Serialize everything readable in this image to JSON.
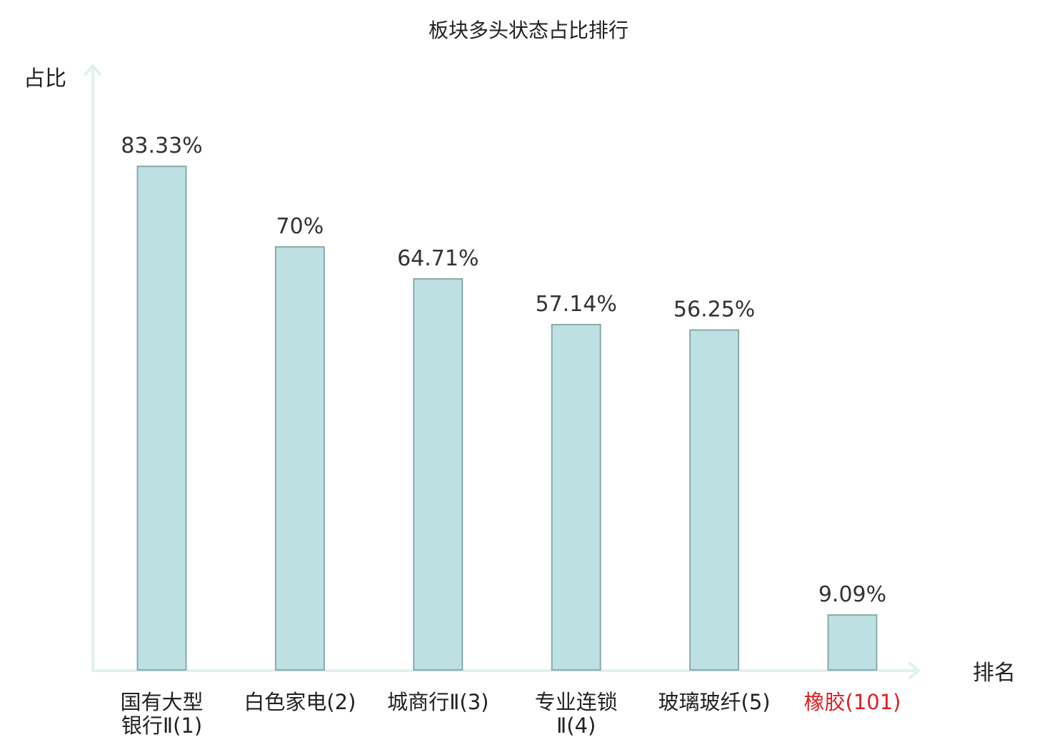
{
  "chart_data": {
    "type": "bar",
    "title": "板块多头状态占比排行",
    "xlabel": "排名",
    "ylabel": "占比",
    "ylim": [
      0,
      100
    ],
    "grid": false,
    "categories": [
      [
        "国有大型",
        "银行Ⅱ(1)"
      ],
      [
        "白色家电(2)"
      ],
      [
        "城商行Ⅱ(3)"
      ],
      [
        "专业连锁",
        "Ⅱ(4)"
      ],
      [
        "玻璃玻纤(5)"
      ],
      [
        "橡胶(101)"
      ]
    ],
    "values": [
      83.33,
      70,
      64.71,
      57.14,
      56.25,
      9.09
    ],
    "value_labels": [
      "83.33%",
      "70%",
      "64.71%",
      "57.14%",
      "56.25%",
      "9.09%"
    ],
    "highlight_index": 5,
    "colors": {
      "bar": "#bde1e3",
      "bar_stroke": "#8aa9aa",
      "axis": "#dff1ef",
      "highlight_text": "#e02020"
    }
  }
}
